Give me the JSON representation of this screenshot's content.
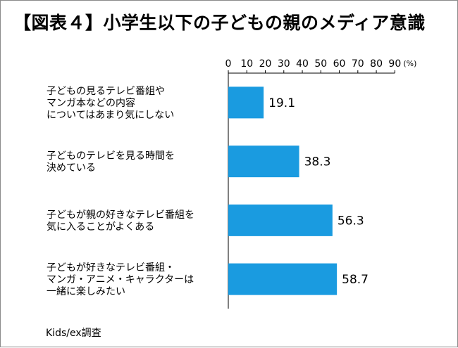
{
  "title": "【図表４】小学生以下の子どもの親のメディア意識",
  "source": "Kids/ex調査",
  "chart_data": {
    "type": "bar",
    "orientation": "horizontal",
    "title": "【図表４】小学生以下の子どもの親のメディア意識",
    "unit_label": "(%)",
    "xlim": [
      0,
      90
    ],
    "x_ticks": [
      "0",
      "10",
      "20",
      "30",
      "40",
      "50",
      "60",
      "70",
      "80",
      "90"
    ],
    "grid": false,
    "bar_color": "#1a9be0",
    "categories": [
      [
        "子どもの見るテレビ番組や",
        "マンガ本などの内容",
        "についてはあまり気にしない"
      ],
      [
        "子どものテレビを見る時間を",
        "決めている"
      ],
      [
        "子どもが親の好きなテレビ番組を",
        "気に入ることがよくある"
      ],
      [
        "子どもが好きなテレビ番組・",
        "マンガ・アニメ・キャラクターは",
        "一緒に楽しみたい"
      ]
    ],
    "values": [
      19.1,
      38.3,
      56.3,
      58.7
    ],
    "value_labels": [
      "19.1",
      "38.3",
      "56.3",
      "58.7"
    ]
  }
}
